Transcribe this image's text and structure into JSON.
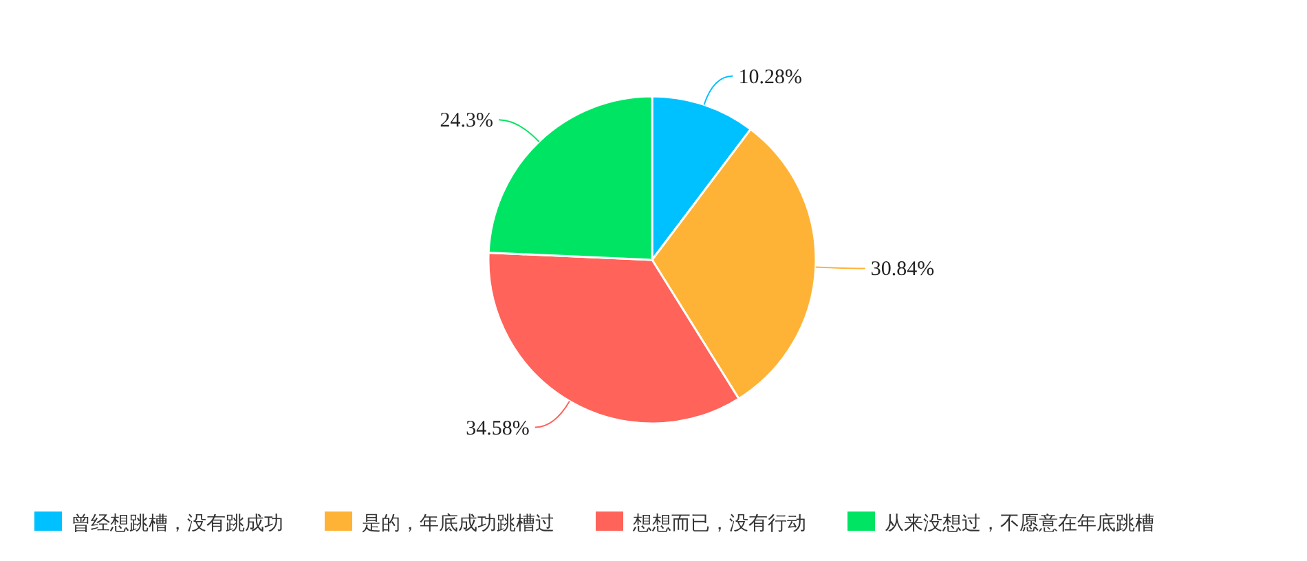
{
  "chart_data": {
    "type": "pie",
    "categories": [
      "曾经想跳槽，没有跳成功",
      "是的，年底成功跳槽过",
      "想想而已，没有行动",
      "从来没想过，不愿意在年底跳槽"
    ],
    "values": [
      10.28,
      30.84,
      34.58,
      24.3
    ],
    "colors": [
      "#00c1ff",
      "#ffb336",
      "#ff635a",
      "#00e464"
    ],
    "value_labels": [
      "10.28%",
      "30.84%",
      "34.58%",
      "24.3%"
    ],
    "legend": "bottom"
  }
}
